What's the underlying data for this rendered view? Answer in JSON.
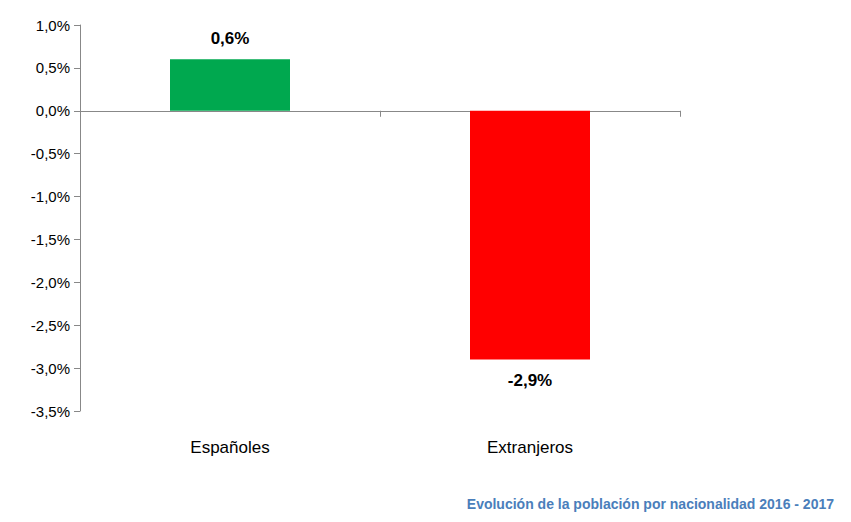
{
  "chart_data": {
    "type": "bar",
    "title": "Evolución de la población por nacionalidad 2016 - 2017",
    "categories": [
      "Españoles",
      "Extranjeros"
    ],
    "values": [
      0.6,
      -2.9
    ],
    "value_labels": [
      "0,6%",
      "-2,9%"
    ],
    "colors": [
      "#00a84f",
      "#ff0000"
    ],
    "ylim": [
      -3.5,
      1.0
    ],
    "yticks": [
      {
        "value": -3.5,
        "label": "-3,5%"
      },
      {
        "value": -3.0,
        "label": "-3,0%"
      },
      {
        "value": -2.5,
        "label": "-2,5%"
      },
      {
        "value": -2.0,
        "label": "-2,0%"
      },
      {
        "value": -1.5,
        "label": "-1,5%"
      },
      {
        "value": -1.0,
        "label": "-1,0%"
      },
      {
        "value": -0.5,
        "label": "-0,5%"
      },
      {
        "value": 0.0,
        "label": "0,0%"
      },
      {
        "value": 0.5,
        "label": "0,5%"
      },
      {
        "value": 1.0,
        "label": "1,0%"
      }
    ],
    "grid": false,
    "data_labels": true
  }
}
